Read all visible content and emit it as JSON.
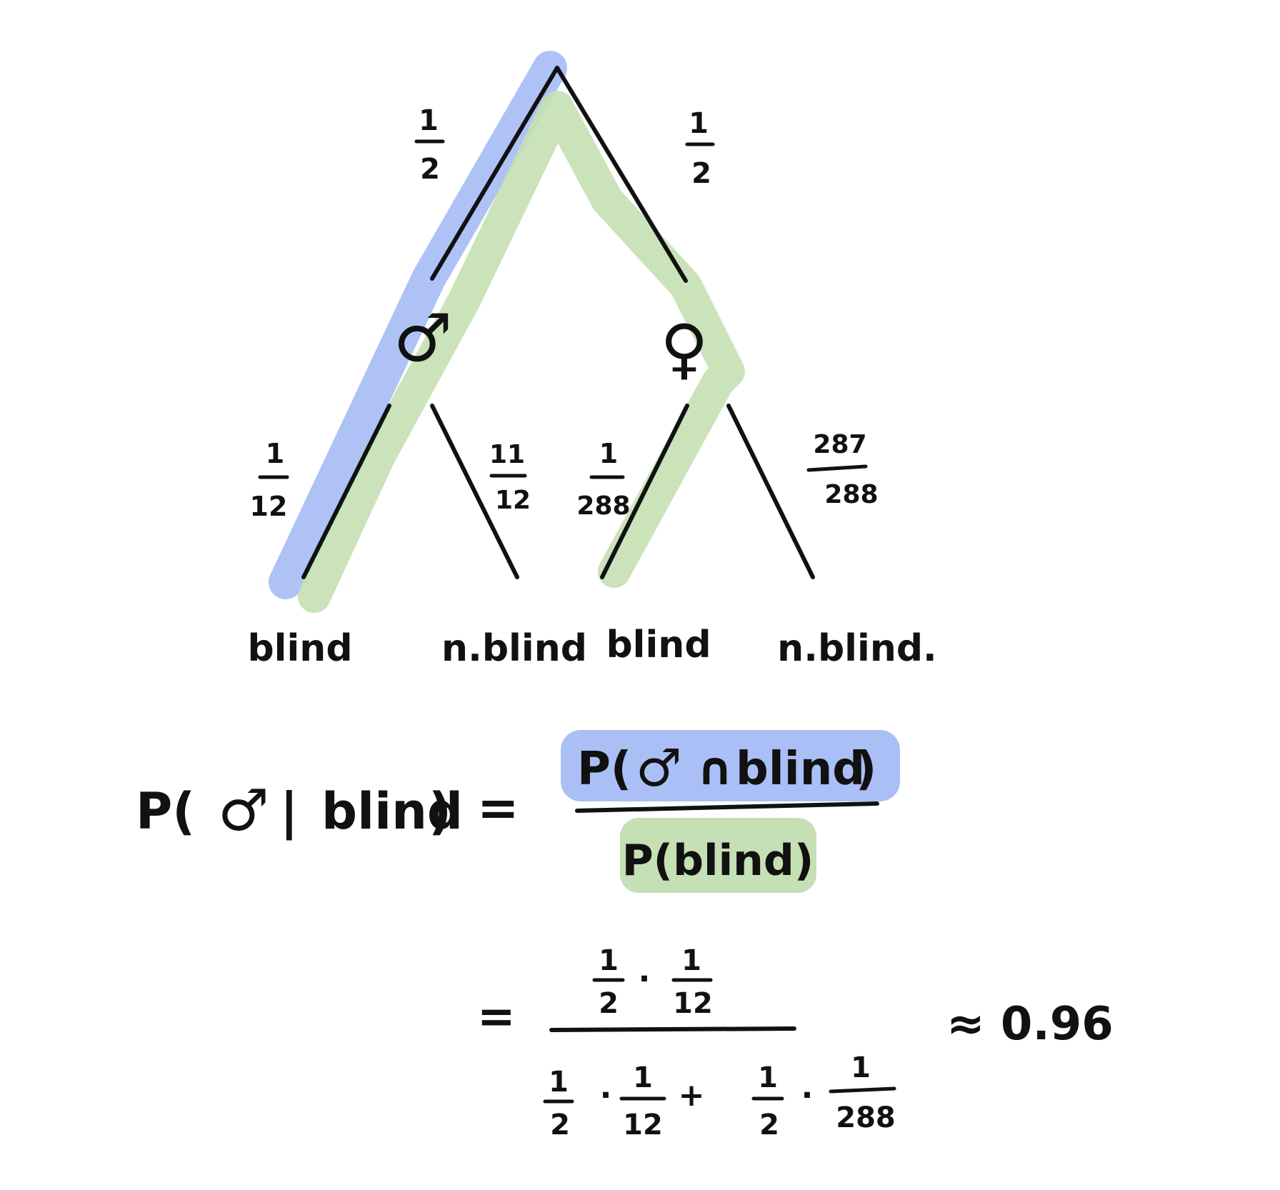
{
  "tree": {
    "level1": {
      "left_prob": {
        "num": "1",
        "den": "2"
      },
      "right_prob": {
        "num": "1",
        "den": "2"
      }
    },
    "nodes": {
      "male_symbol": "♂",
      "female_symbol": "♀"
    },
    "level2": {
      "male_blind_prob": {
        "num": "1",
        "den": "12"
      },
      "male_not_blind_prob": {
        "num": "11",
        "den": "12"
      },
      "female_blind_prob": {
        "num": "1",
        "den": "288"
      },
      "female_not_blind_prob": {
        "num": "287",
        "den": "288"
      }
    },
    "leaves": {
      "leaf1": "blind",
      "leaf2": "n.blind",
      "leaf3": "blind",
      "leaf4": "n.blind."
    }
  },
  "formula": {
    "lhs": {
      "p_open": "P(",
      "symbol": "♂",
      "bar": "|",
      "event": "blind",
      "close": ")"
    },
    "equals": "=",
    "numerator": {
      "p_open": "P(",
      "symbol": "♂",
      "cap": "∩",
      "event": "blind",
      "close": ")"
    },
    "denominator": "P(blind)",
    "calc": {
      "equals": "=",
      "num": {
        "a_num": "1",
        "a_den": "2",
        "dot": "·",
        "b_num": "1",
        "b_den": "12"
      },
      "den": {
        "a_num": "1",
        "a_den": "2",
        "dot1": "·",
        "b_num": "1",
        "b_den": "12",
        "plus": "+",
        "c_num": "1",
        "c_den": "2",
        "dot2": "·",
        "d_num": "1",
        "d_den": "288"
      },
      "approx": "≈ 0.96"
    }
  },
  "colors": {
    "blue_highlight": "#aabff5",
    "green_highlight": "#c5e0b4",
    "ink": "#111111"
  }
}
